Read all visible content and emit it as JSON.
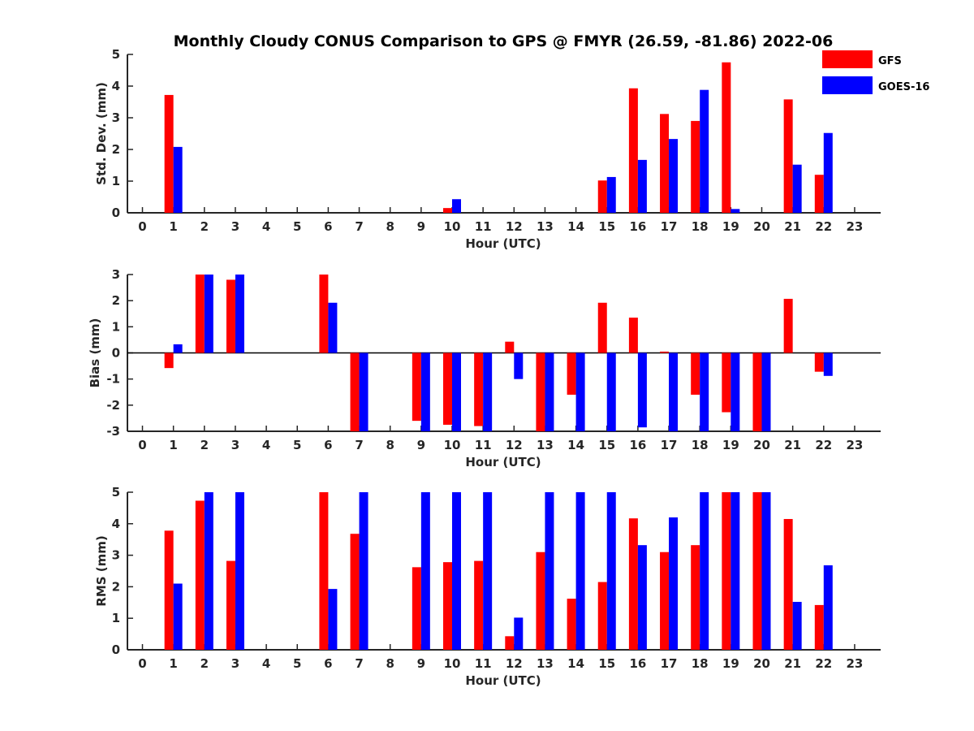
{
  "chart_data": [
    {
      "type": "bar",
      "title": "Monthly Cloudy CONUS Comparison to GPS @ FMYR (26.59, -81.86) 2022-06",
      "xlabel": "Hour (UTC)",
      "ylabel": "Std. Dev. (mm)",
      "ylim": [
        0,
        5
      ],
      "yticks": [
        0,
        1,
        2,
        3,
        4,
        5
      ],
      "categories": [
        "0",
        "1",
        "2",
        "3",
        "4",
        "5",
        "6",
        "7",
        "8",
        "9",
        "10",
        "11",
        "12",
        "13",
        "14",
        "15",
        "16",
        "17",
        "18",
        "19",
        "20",
        "21",
        "22",
        "23"
      ],
      "series": [
        {
          "name": "GFS",
          "color": "#ff0000",
          "values": [
            null,
            3.72,
            null,
            null,
            null,
            null,
            null,
            null,
            null,
            null,
            0.15,
            null,
            null,
            null,
            null,
            1.02,
            3.93,
            3.12,
            2.9,
            4.75,
            null,
            3.58,
            1.2,
            null
          ]
        },
        {
          "name": "GOES-16",
          "color": "#0000ff",
          "values": [
            null,
            2.08,
            null,
            null,
            null,
            null,
            null,
            null,
            null,
            null,
            0.43,
            null,
            null,
            null,
            null,
            1.13,
            1.67,
            2.33,
            3.88,
            0.12,
            null,
            1.52,
            2.52,
            null
          ]
        }
      ]
    },
    {
      "type": "bar",
      "xlabel": "Hour (UTC)",
      "ylabel": "Bias (mm)",
      "ylim": [
        -3,
        3
      ],
      "yticks": [
        -3,
        -2,
        -1,
        0,
        1,
        2,
        3
      ],
      "categories": [
        "0",
        "1",
        "2",
        "3",
        "4",
        "5",
        "6",
        "7",
        "8",
        "9",
        "10",
        "11",
        "12",
        "13",
        "14",
        "15",
        "16",
        "17",
        "18",
        "19",
        "20",
        "21",
        "22",
        "23"
      ],
      "series": [
        {
          "name": "GFS",
          "color": "#ff0000",
          "values": [
            null,
            -0.58,
            3.0,
            2.8,
            null,
            null,
            3.0,
            -3.0,
            null,
            -2.6,
            -2.75,
            -2.8,
            0.43,
            -3.0,
            -1.6,
            1.92,
            1.35,
            0.05,
            -1.6,
            -2.27,
            -3.0,
            2.07,
            -0.72,
            null
          ]
        },
        {
          "name": "GOES-16",
          "color": "#0000ff",
          "values": [
            null,
            0.33,
            3.0,
            3.0,
            null,
            null,
            1.92,
            -3.0,
            null,
            -3.0,
            -3.0,
            -3.0,
            -1.0,
            -3.0,
            -3.0,
            -3.0,
            -2.85,
            -3.0,
            -3.0,
            -3.0,
            -3.0,
            null,
            -0.88,
            null
          ]
        }
      ]
    },
    {
      "type": "bar",
      "xlabel": "Hour (UTC)",
      "ylabel": "RMS (mm)",
      "ylim": [
        0,
        5
      ],
      "yticks": [
        0,
        1,
        2,
        3,
        4,
        5
      ],
      "categories": [
        "0",
        "1",
        "2",
        "3",
        "4",
        "5",
        "6",
        "7",
        "8",
        "9",
        "10",
        "11",
        "12",
        "13",
        "14",
        "15",
        "16",
        "17",
        "18",
        "19",
        "20",
        "21",
        "22",
        "23"
      ],
      "series": [
        {
          "name": "GFS",
          "color": "#ff0000",
          "values": [
            null,
            3.78,
            4.73,
            2.82,
            null,
            null,
            5.0,
            3.68,
            null,
            2.62,
            2.78,
            2.82,
            0.43,
            3.1,
            1.62,
            2.15,
            4.17,
            3.1,
            3.32,
            5.0,
            5.0,
            4.15,
            1.42,
            null
          ]
        },
        {
          "name": "GOES-16",
          "color": "#0000ff",
          "values": [
            null,
            2.1,
            5.0,
            5.0,
            null,
            null,
            1.93,
            5.0,
            null,
            5.0,
            5.0,
            5.0,
            1.02,
            5.0,
            5.0,
            5.0,
            3.32,
            4.2,
            5.0,
            5.0,
            5.0,
            1.52,
            2.68,
            null
          ]
        }
      ]
    }
  ],
  "legend": [
    {
      "label": "GFS",
      "color": "#ff0000"
    },
    {
      "label": "GOES-16",
      "color": "#0000ff"
    }
  ]
}
